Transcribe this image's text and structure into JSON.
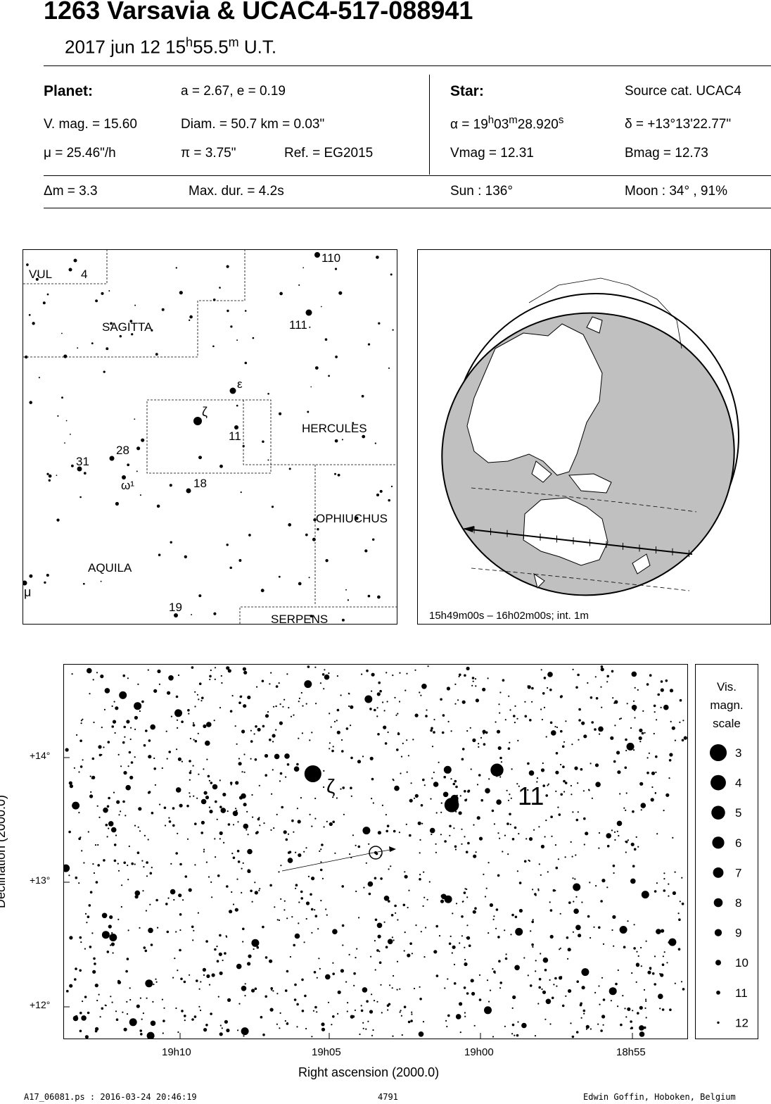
{
  "header": {
    "title": "1263 Varsavia  &  UCAC4-517-088941",
    "date_prefix": "2017 jun 12  15",
    "time_h_sup": "h",
    "time_min": "55.5",
    "time_m_sup": "m",
    "time_suffix": " U.T."
  },
  "planet": {
    "heading": "Planet:",
    "orbit": "a = 2.67, e = 0.19",
    "vmag": "V. mag. = 15.60",
    "diam": "Diam. = 50.7 km = 0.03\"",
    "mu": "μ =  25.46\"/h",
    "pi": "π =  3.75\"",
    "ref": "Ref. = EG2015"
  },
  "star": {
    "heading": "Star:",
    "source": "Source cat.  UCAC4",
    "ra_prefix": "α = 19",
    "ra_h": "h",
    "ra_min": "03",
    "ra_m": "m",
    "ra_sec": "28.920",
    "ra_s": "s",
    "dec": "δ = +13°13'22.77\"",
    "vmag": "Vmag = 12.31",
    "bmag": "Bmag = 12.73"
  },
  "event": {
    "dm": "Δm = 3.3",
    "maxdur": "Max. dur. = 4.2s",
    "sun": "Sun : 136°",
    "moon": "Moon :  34° , 91%"
  },
  "finder_map": {
    "constellations": [
      "VUL",
      "SAGITTA",
      "HERCULES",
      "OPHIUCHUS",
      "AQUILA",
      "SERPENS"
    ],
    "star_labels": [
      "110",
      "4",
      "111",
      "ε",
      "ζ",
      "11",
      "28",
      "31",
      "ω¹",
      "18",
      "μ",
      "19"
    ]
  },
  "globe": {
    "caption": "15h49m00s – 16h02m00s; int.  1m"
  },
  "star_chart": {
    "y_axis_label": "Declination (2000.0)",
    "x_axis_label": "Right ascension (2000.0)",
    "y_ticks": [
      "+14°",
      "+13°",
      "+12°"
    ],
    "x_ticks": [
      "19h10",
      "19h05",
      "19h00",
      "18h55"
    ],
    "labels": [
      "ζ",
      "11"
    ],
    "bright_stars": [
      {
        "ra": "19h05.6",
        "dec": 13.87,
        "mag": 3
      },
      {
        "ra": "19h01.0",
        "dec": 13.62,
        "mag": 4.5
      },
      {
        "ra": "18h59.5",
        "dec": 13.9,
        "mag": 5.5
      }
    ]
  },
  "magnitude_scale": {
    "title_lines": [
      "Vis.",
      "magn.",
      "scale"
    ],
    "levels": [
      "3",
      "4",
      "5",
      "6",
      "7",
      "8",
      "9",
      "10",
      "11",
      "12"
    ]
  },
  "footer": {
    "file": "A17_06081.ps : 2016-03-24 20:46:19",
    "number": "4791",
    "author": "Edwin Goffin, Hoboken, Belgium"
  }
}
